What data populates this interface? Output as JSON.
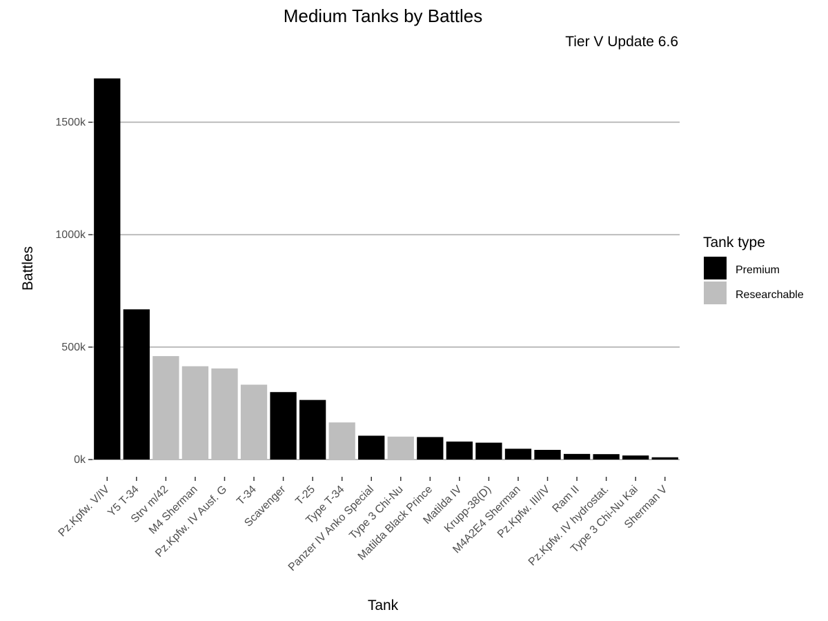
{
  "chart_data": {
    "type": "bar",
    "title": "Medium Tanks by Battles",
    "subtitle": "Tier V Update 6.6",
    "xlabel": "Tank",
    "ylabel": "Battles",
    "ylim": [
      0,
      1700000
    ],
    "yticks": [
      0,
      500000,
      1000000,
      1500000
    ],
    "ytick_labels": [
      "0k",
      "500k",
      "1000k",
      "1500k"
    ],
    "grid": "horizontal",
    "legend": {
      "title": "Tank type",
      "placement": "right",
      "entries": [
        {
          "label": "Premium",
          "color": "#000000"
        },
        {
          "label": "Researchable",
          "color": "#bebebe"
        }
      ]
    },
    "categories": [
      "Pz.Kpfw. V/IV",
      "Y5 T-34",
      "Strv m/42",
      "M4 Sherman",
      "Pz.Kpfw. IV Ausf. G",
      "T-34",
      "Scavenger",
      "T-25",
      "Type T-34",
      "Panzer IV Anko Special",
      "Type 3 Chi-Nu",
      "Matilda Black Prince",
      "Matilda IV",
      "Krupp-38(D)",
      "M4A2E4 Sherman",
      "Pz.Kpfw. III/IV",
      "Ram II",
      "Pz.Kpfw. IV hydrostat.",
      "Type 3 Chi-Nu Kai",
      "Sherman V"
    ],
    "values": [
      1695000,
      668000,
      460000,
      415000,
      405000,
      333000,
      300000,
      265000,
      165000,
      106000,
      102000,
      100000,
      80000,
      75000,
      48000,
      43000,
      25000,
      24000,
      18000,
      10000
    ],
    "types": [
      "Premium",
      "Premium",
      "Researchable",
      "Researchable",
      "Researchable",
      "Researchable",
      "Premium",
      "Premium",
      "Researchable",
      "Premium",
      "Researchable",
      "Premium",
      "Premium",
      "Premium",
      "Premium",
      "Premium",
      "Premium",
      "Premium",
      "Premium",
      "Premium"
    ]
  }
}
